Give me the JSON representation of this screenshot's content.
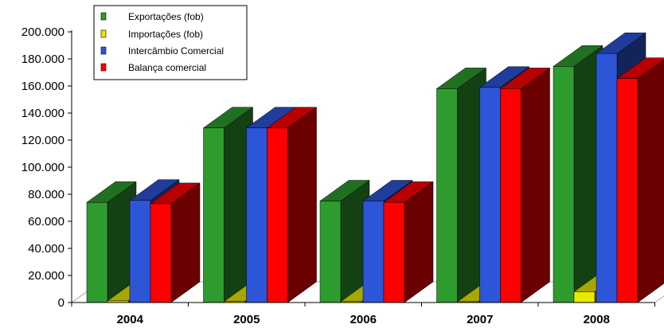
{
  "chart_data": {
    "type": "bar",
    "categories": [
      "2004",
      "2005",
      "2006",
      "2007",
      "2008"
    ],
    "series": [
      {
        "name": "Exportações (fob)",
        "color": "#2e9b2e",
        "values": [
          74000,
          129000,
          75000,
          158000,
          174500
        ]
      },
      {
        "name": "Importações (fob)",
        "color": "#e8e800",
        "values": [
          1200,
          800,
          700,
          600,
          8000
        ]
      },
      {
        "name": "Intercâmbio Comercial",
        "color": "#2d55d8",
        "values": [
          75500,
          129000,
          75000,
          159000,
          184000
        ]
      },
      {
        "name": "Balança comercial",
        "color": "#ff0000",
        "values": [
          73000,
          129000,
          74000,
          158000,
          165500
        ]
      }
    ],
    "y_ticks": [
      "0",
      "20.000",
      "40.000",
      "60.000",
      "80.000",
      "100.000",
      "120.000",
      "140.000",
      "160.000",
      "180.000",
      "200.000"
    ],
    "ylim": [
      0,
      200000
    ],
    "legend_position": "top-left",
    "grid": false,
    "style": "3d-clustered-bar"
  }
}
